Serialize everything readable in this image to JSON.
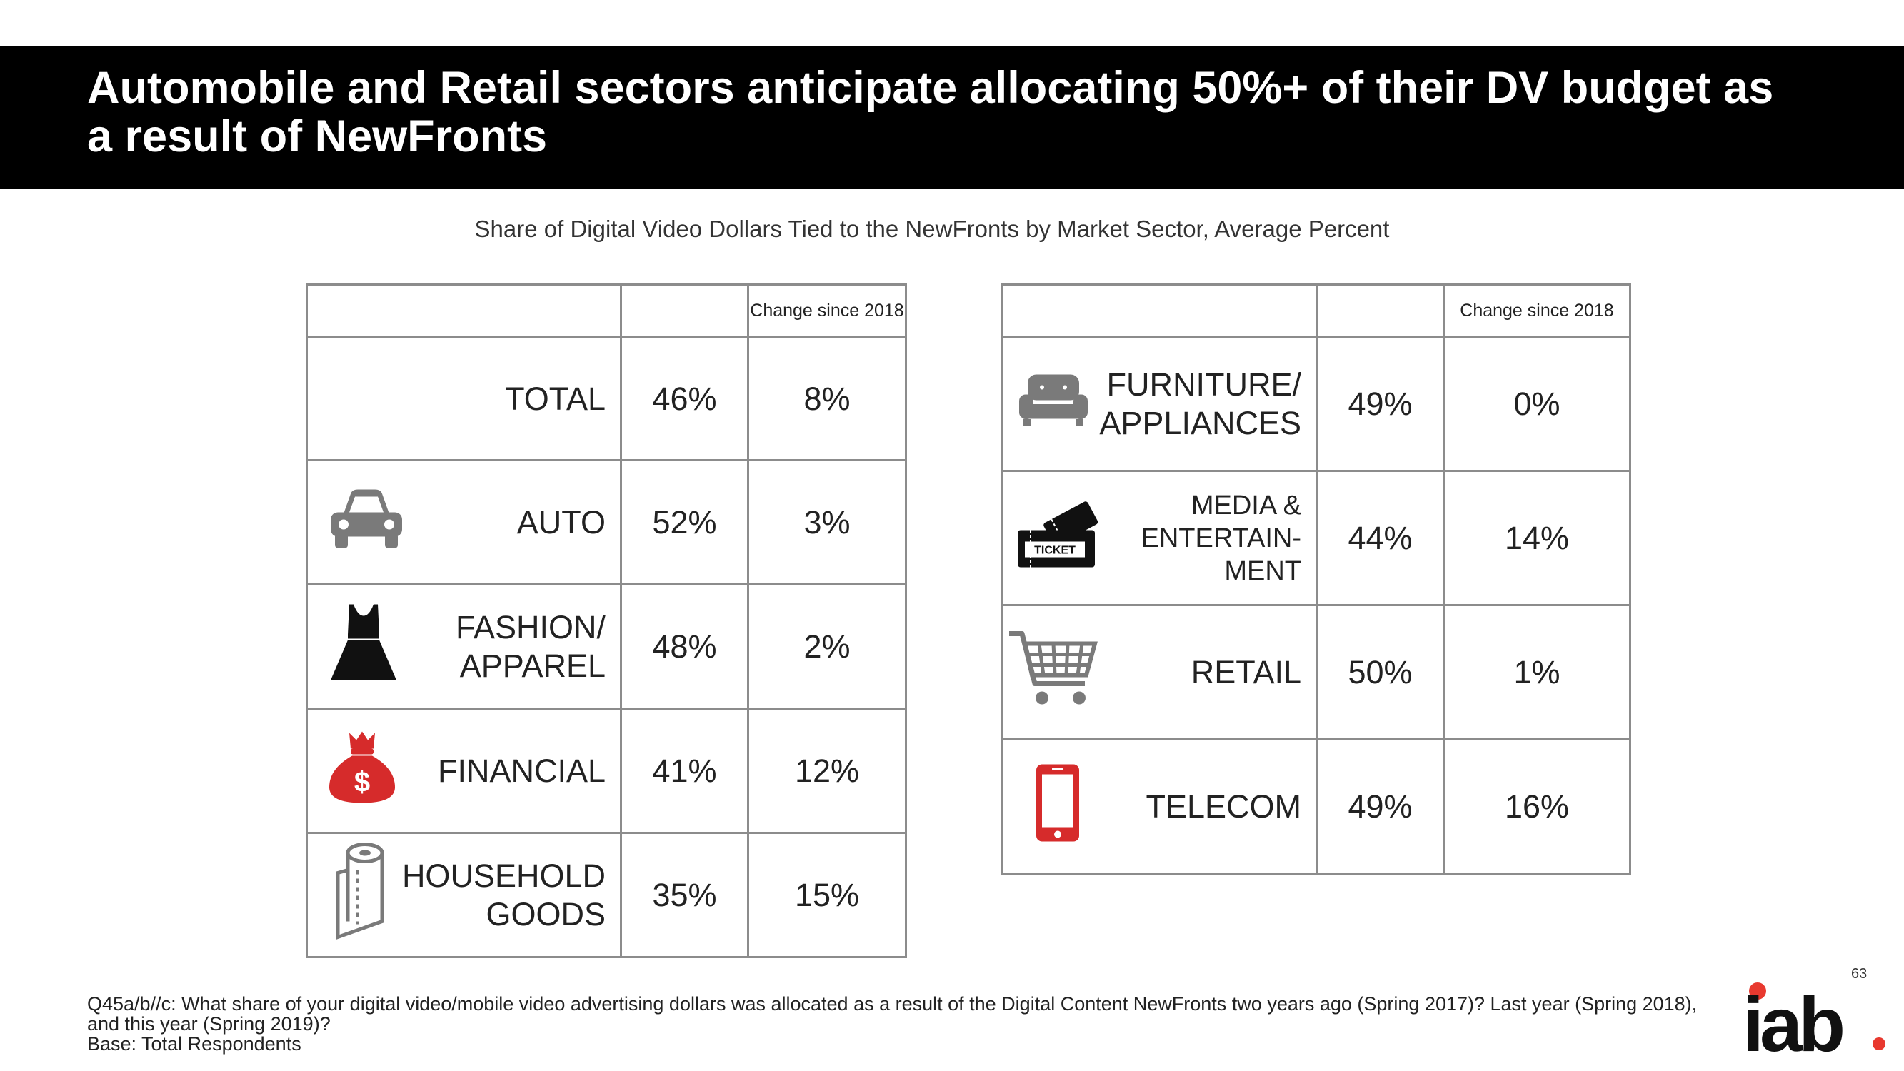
{
  "header": {
    "title": "Automobile and Retail sectors anticipate allocating 50%+ of their DV budget as a result of NewFronts"
  },
  "subtitle": "Share of Digital Video Dollars Tied to the NewFronts by Market Sector, Average Percent",
  "left_table": {
    "change_header": "Change since 2018",
    "rows": [
      {
        "label": "TOTAL",
        "value": "46%",
        "change": "8%"
      },
      {
        "label": "AUTO",
        "value": "52%",
        "change": "3%",
        "icon": "car-icon"
      },
      {
        "label": "FASHION/\nAPPAREL",
        "value": "48%",
        "change": "2%",
        "icon": "dress-icon"
      },
      {
        "label": "FINANCIAL",
        "value": "41%",
        "change": "12%",
        "icon": "money-bag-icon"
      },
      {
        "label": "HOUSEHOLD\nGOODS",
        "value": "35%",
        "change": "15%",
        "icon": "paper-towel-icon"
      }
    ]
  },
  "right_table": {
    "change_header": "Change since 2018",
    "rows": [
      {
        "label": "FURNITURE/\nAPPLIANCES",
        "value": "49%",
        "change": "0%",
        "icon": "sofa-icon"
      },
      {
        "label": "MEDIA &\nENTERTAIN-\nMENT",
        "value": "44%",
        "change": "14%",
        "icon": "ticket-icon",
        "ticket_text": "TICKET"
      },
      {
        "label": "RETAIL",
        "value": "50%",
        "change": "1%",
        "icon": "shopping-cart-icon"
      },
      {
        "label": "TELECOM",
        "value": "49%",
        "change": "16%",
        "icon": "mobile-phone-icon"
      }
    ]
  },
  "icon_text": {
    "dollar": "$"
  },
  "footnote": {
    "question": "Q45a/b//c: What share of your digital video/mobile video advertising dollars was allocated as a result of the Digital Content NewFronts two years ago (Spring 2017)?  Last year (Spring 2018), and this year (Spring 2019)?",
    "base": "Base:  Total Respondents"
  },
  "page_number": "63",
  "logo": {
    "text": "iab",
    "dot_color": "#e8392f"
  },
  "colors": {
    "header_bg": "#000000",
    "accent_red": "#d62b2b",
    "icon_gray": "#7a7a7a",
    "border": "#8c8c8c"
  }
}
